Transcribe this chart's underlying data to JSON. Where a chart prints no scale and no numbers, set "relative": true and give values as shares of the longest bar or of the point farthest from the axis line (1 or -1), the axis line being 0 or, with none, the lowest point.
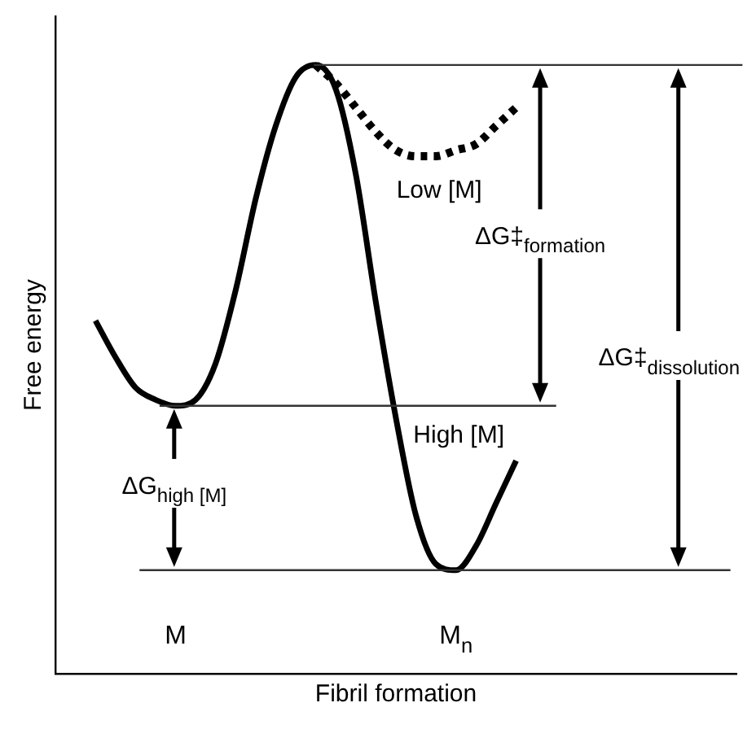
{
  "chart_data": {
    "type": "line",
    "relative": true,
    "xlabel": "Fibril formation",
    "ylabel": "Free energy",
    "categories": [
      null,
      null,
      null,
      null,
      null,
      null,
      "M",
      null,
      null,
      null,
      null,
      null,
      null,
      null,
      null,
      null,
      null,
      null,
      null,
      null,
      "M$_{n}$",
      null,
      null,
      null,
      null,
      null,
      null,
      null,
      null,
      null,
      null,
      null,
      null,
      null,
      null
    ],
    "series": [
      {
        "name": "High [M]",
        "color": "#000000",
        "line_style": "solid",
        "values": [
          null,
          null,
          0.58,
          0.52,
          0.47,
          0.45,
          0.44,
          0.45,
          0.51,
          0.63,
          0.78,
          0.9,
          0.98,
          1,
          0.96,
          0.82,
          0.61,
          0.42,
          0.26,
          0.18,
          0.17,
          0.21,
          0.28,
          0.35,
          null,
          null,
          null,
          null,
          null,
          null,
          null,
          null,
          null,
          null,
          null
        ]
      },
      {
        "name": "Low [M]",
        "color": "#000000",
        "line_style": "dotted",
        "values": [
          null,
          null,
          null,
          null,
          null,
          null,
          null,
          null,
          null,
          null,
          null,
          null,
          null,
          1,
          0.97,
          0.93,
          0.89,
          0.86,
          0.85,
          0.85,
          0.86,
          0.87,
          0.9,
          0.93,
          null,
          null,
          null,
          null,
          null,
          null,
          null,
          null,
          null,
          null,
          null
        ]
      }
    ],
    "ref_lines": [
      {
        "axis": "y",
        "value": 1
      },
      {
        "axis": "y",
        "value": 0.44
      },
      {
        "axis": "y",
        "value": 0.17
      }
    ],
    "annotations": [
      "ΔG‡$_{formation}$",
      "ΔG‡$_{dissolution}$",
      "ΔG$_{high [M]}$"
    ],
    "grid": false,
    "legend": false,
    "marker": "none"
  }
}
